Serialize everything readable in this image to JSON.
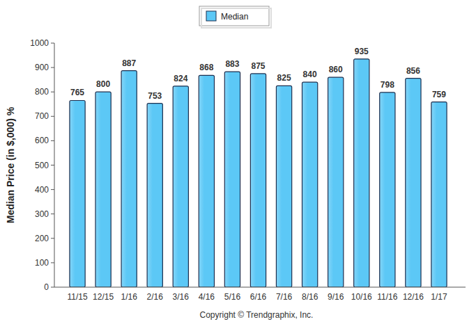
{
  "chart_data": {
    "type": "bar",
    "y_label": "Median Price (in $,000) %",
    "annotations": [
      "Copyright © Trendgraphix, Inc."
    ],
    "categories": [
      "11/15",
      "12/15",
      "1/16",
      "2/16",
      "3/16",
      "4/16",
      "5/16",
      "6/16",
      "7/16",
      "8/16",
      "9/16",
      "10/16",
      "11/16",
      "12/16",
      "1/17"
    ],
    "series": [
      {
        "name": "Median",
        "color": "#5cc8f6",
        "values": [
          765,
          800,
          887,
          753,
          824,
          868,
          883,
          875,
          825,
          840,
          860,
          935,
          798,
          856,
          759
        ]
      }
    ],
    "ylim": [
      0,
      1000
    ],
    "yticks": [
      0,
      100,
      200,
      300,
      400,
      500,
      600,
      700,
      800,
      900,
      1000
    ],
    "grid": false,
    "legend": "top",
    "data_labels": true
  }
}
